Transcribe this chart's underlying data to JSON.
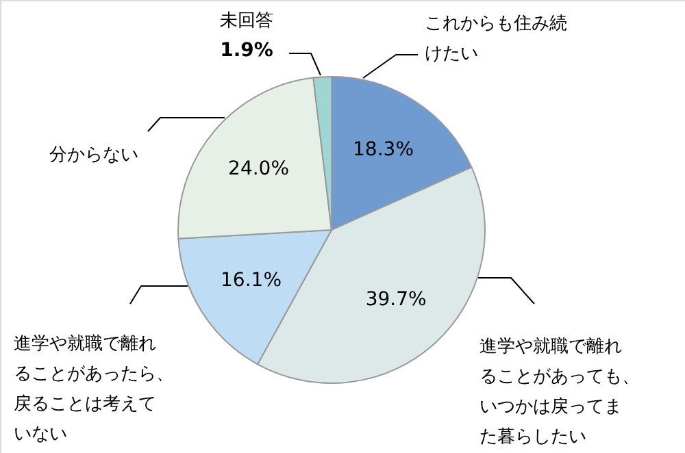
{
  "chart_data": {
    "type": "pie",
    "categories": [
      "これからも住み続けたい",
      "進学や就職で離れることがあっても、いつかは戻ってまた暮らしたい",
      "進学や就職で離れることがあったら、戻ることは考えていない",
      "分からない",
      "未回答"
    ],
    "values": [
      18.3,
      39.7,
      16.1,
      24.0,
      1.9
    ],
    "colors": [
      "#6f9bd1",
      "#dde9e9",
      "#bfdcf5",
      "#e6f0e6",
      "#9fd6d4"
    ],
    "value_labels": [
      "18.3%",
      "39.7%",
      "16.1%",
      "24.0%",
      "1.9%"
    ]
  }
}
